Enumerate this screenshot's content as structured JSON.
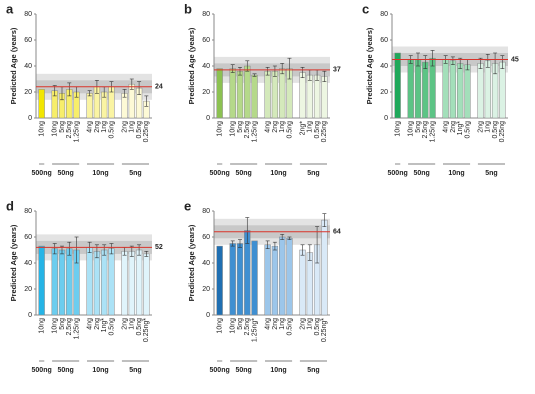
{
  "chart_data": [
    {
      "type": "bar",
      "panel": "a",
      "y_label": "Predicted Age (years)",
      "ylim": [
        0,
        80
      ],
      "yticks": [
        0,
        20,
        40,
        60,
        80
      ],
      "reference": 24,
      "bands": [
        [
          14,
          34
        ],
        [
          19,
          29
        ]
      ],
      "groups": [
        {
          "label": "500ng",
          "color": "#f2e600",
          "categories": [
            "10ng"
          ],
          "values": [
            22
          ],
          "errors": [
            0
          ]
        },
        {
          "label": "50ng",
          "color": "#f7ee6a",
          "categories": [
            "10ng",
            "5ng",
            "2.5ng",
            "1.25ng"
          ],
          "values": [
            21,
            19,
            22,
            20
          ],
          "errors": [
            4,
            5,
            5,
            4
          ]
        },
        {
          "label": "10ng",
          "color": "#faf4a3",
          "categories": [
            "4ng",
            "2ng",
            "1ng",
            "0.5ng"
          ],
          "values": [
            19,
            24,
            20,
            24
          ],
          "errors": [
            2,
            5,
            4,
            4
          ]
        },
        {
          "label": "5ng",
          "color": "#fdfad6",
          "categories": [
            "2ng",
            "1ng",
            "0.5ng",
            "0.25ng"
          ],
          "values": [
            19,
            26,
            23,
            13
          ],
          "errors": [
            3,
            4,
            5,
            4
          ]
        }
      ]
    },
    {
      "type": "bar",
      "panel": "b",
      "y_label": "Predicted Age (years)",
      "ylim": [
        0,
        80
      ],
      "yticks": [
        0,
        20,
        40,
        60,
        80
      ],
      "reference": 37,
      "bands": [
        [
          27,
          47
        ],
        [
          32,
          42
        ]
      ],
      "groups": [
        {
          "label": "500ng",
          "color": "#8cc152",
          "categories": [
            "10ng"
          ],
          "values": [
            38
          ],
          "errors": [
            0
          ]
        },
        {
          "label": "50ng",
          "color": "#b5d98a",
          "categories": [
            "10ng",
            "5ng",
            "2.5ng",
            "1.25ng"
          ],
          "values": [
            38,
            36,
            40,
            33
          ],
          "errors": [
            3,
            3,
            4,
            1
          ]
        },
        {
          "label": "10ng",
          "color": "#d4e9bb",
          "categories": [
            "4ng",
            "2ng",
            "1ng",
            "0.5ng"
          ],
          "values": [
            36,
            36,
            38,
            38
          ],
          "errors": [
            3,
            4,
            4,
            8
          ]
        },
        {
          "label": "5ng",
          "color": "#edf6e2",
          "categories": [
            "2ng*",
            "1ng",
            "0.5ng",
            "0.25ng"
          ],
          "values": [
            35,
            33,
            33,
            32
          ],
          "errors": [
            4,
            4,
            4,
            4
          ]
        }
      ]
    },
    {
      "type": "bar",
      "panel": "c",
      "y_label": "Predicted Age (years)",
      "ylim": [
        0,
        80
      ],
      "yticks": [
        0,
        20,
        40,
        60,
        80
      ],
      "reference": 45,
      "bands": [
        [
          35,
          55
        ],
        [
          40,
          50
        ]
      ],
      "groups": [
        {
          "label": "500ng",
          "color": "#1fa85a",
          "categories": [
            "10ng"
          ],
          "values": [
            50
          ],
          "errors": [
            0
          ]
        },
        {
          "label": "50ng",
          "color": "#5cc485",
          "categories": [
            "10ng",
            "5ng",
            "2.5ng",
            "1.25ng"
          ],
          "values": [
            45,
            45,
            43,
            46
          ],
          "errors": [
            3,
            5,
            5,
            6
          ]
        },
        {
          "label": "10ng",
          "color": "#a3dfba",
          "categories": [
            "4ng",
            "2ng",
            "1ng*",
            "0.5ng"
          ],
          "values": [
            45,
            44,
            42,
            41
          ],
          "errors": [
            3,
            3,
            4,
            4
          ]
        },
        {
          "label": "5ng",
          "color": "#dbf2e4",
          "categories": [
            "2ng",
            "1ng",
            "0.5ng",
            "0.25ng"
          ],
          "values": [
            42,
            44,
            42,
            43
          ],
          "errors": [
            4,
            5,
            8,
            5
          ]
        }
      ]
    },
    {
      "type": "bar",
      "panel": "d",
      "y_label": "Predicted Age (years)",
      "ylim": [
        0,
        80
      ],
      "yticks": [
        0,
        20,
        40,
        60,
        80
      ],
      "reference": 52,
      "bands": [
        [
          42,
          62
        ],
        [
          47,
          57
        ]
      ],
      "groups": [
        {
          "label": "500ng",
          "color": "#25b4e6",
          "categories": [
            "10ng"
          ],
          "values": [
            53
          ],
          "errors": [
            0
          ]
        },
        {
          "label": "50ng",
          "color": "#6ccdef",
          "categories": [
            "10ng",
            "5ng",
            "2.5ng",
            "1.25ng"
          ],
          "values": [
            51,
            50,
            51,
            50
          ],
          "errors": [
            4,
            3,
            5,
            10
          ]
        },
        {
          "label": "10ng",
          "color": "#abe2f6",
          "categories": [
            "4ng",
            "2ng",
            "1ng*",
            "0.5ng"
          ],
          "values": [
            52,
            49,
            50,
            51
          ],
          "errors": [
            4,
            5,
            4,
            4
          ]
        },
        {
          "label": "5ng",
          "color": "#e0f4fb",
          "categories": [
            "2ng",
            "1ng",
            "0.5ng",
            "0.25ng*"
          ],
          "values": [
            49,
            49,
            50,
            47
          ],
          "errors": [
            3,
            4,
            4,
            2
          ]
        }
      ]
    },
    {
      "type": "bar",
      "panel": "e",
      "y_label": "Predicted Age (years)",
      "ylim": [
        0,
        80
      ],
      "yticks": [
        0,
        20,
        40,
        60,
        80
      ],
      "reference": 64,
      "bands": [
        [
          54,
          74
        ],
        [
          59,
          69
        ]
      ],
      "groups": [
        {
          "label": "500ng",
          "color": "#1f6fb2",
          "categories": [
            "10ng"
          ],
          "values": [
            53
          ],
          "errors": [
            0
          ]
        },
        {
          "label": "50ng",
          "color": "#3f8fd1",
          "categories": [
            "10ng",
            "5ng",
            "2.5ng",
            "1.25ng*"
          ],
          "values": [
            55,
            55,
            65,
            57
          ],
          "errors": [
            2,
            3,
            10,
            0
          ]
        },
        {
          "label": "10ng",
          "color": "#9cc6ea",
          "categories": [
            "4ng",
            "2ng",
            "1ng",
            "0.5ng"
          ],
          "values": [
            54,
            53,
            60,
            59
          ],
          "errors": [
            3,
            3,
            2,
            1
          ]
        },
        {
          "label": "5ng",
          "color": "#d9e9f7",
          "categories": [
            "2ng",
            "1ng",
            "0.5ng",
            "0.25ng*"
          ],
          "values": [
            50,
            48,
            54,
            73
          ],
          "errors": [
            4,
            6,
            14,
            5
          ]
        }
      ]
    }
  ]
}
